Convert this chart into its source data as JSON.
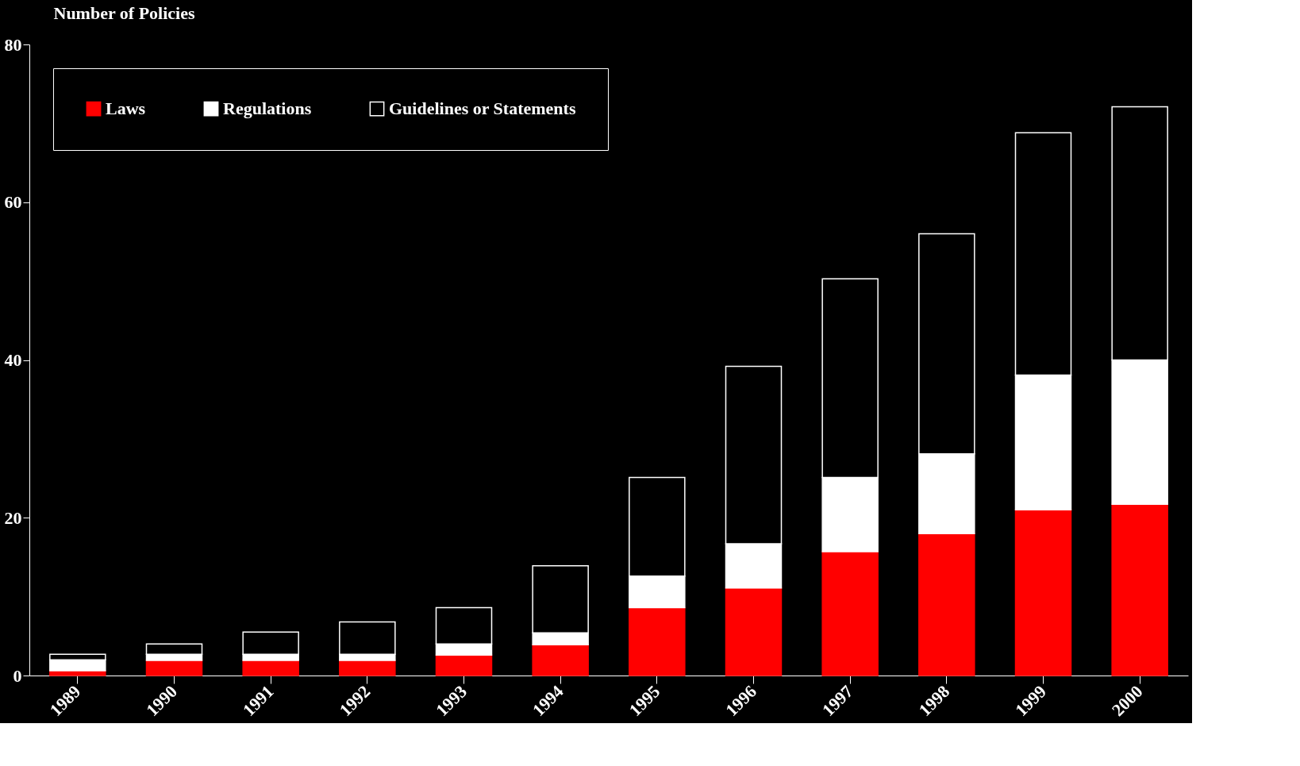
{
  "chart_data": {
    "type": "bar",
    "stacked": true,
    "ylabel": "Number of Policies",
    "categories": [
      "1989",
      "1990",
      "1991",
      "1992",
      "1993",
      "1994",
      "1995",
      "1996",
      "1997",
      "1998",
      "1999",
      "2000"
    ],
    "series": [
      {
        "name": "Laws",
        "color": "#ff0000",
        "values": [
          0.6,
          1.9,
          1.9,
          1.9,
          2.6,
          3.9,
          8.6,
          11.1,
          15.7,
          18.0,
          21.0,
          21.7
        ]
      },
      {
        "name": "Regulations",
        "color": "#ffffff",
        "values": [
          1.4,
          0.8,
          0.8,
          0.8,
          1.4,
          1.5,
          4.0,
          5.6,
          9.4,
          10.1,
          17.1,
          18.3
        ]
      },
      {
        "name": "Guidelines or Statements",
        "color": "#000000",
        "values": [
          0.7,
          1.3,
          2.8,
          4.1,
          4.6,
          8.5,
          12.5,
          22.5,
          25.2,
          27.9,
          30.7,
          32.1
        ]
      }
    ],
    "ylim": [
      0,
      80
    ],
    "yticks": [
      0,
      20,
      40,
      60,
      80
    ],
    "grid": false,
    "legend": "top left"
  }
}
